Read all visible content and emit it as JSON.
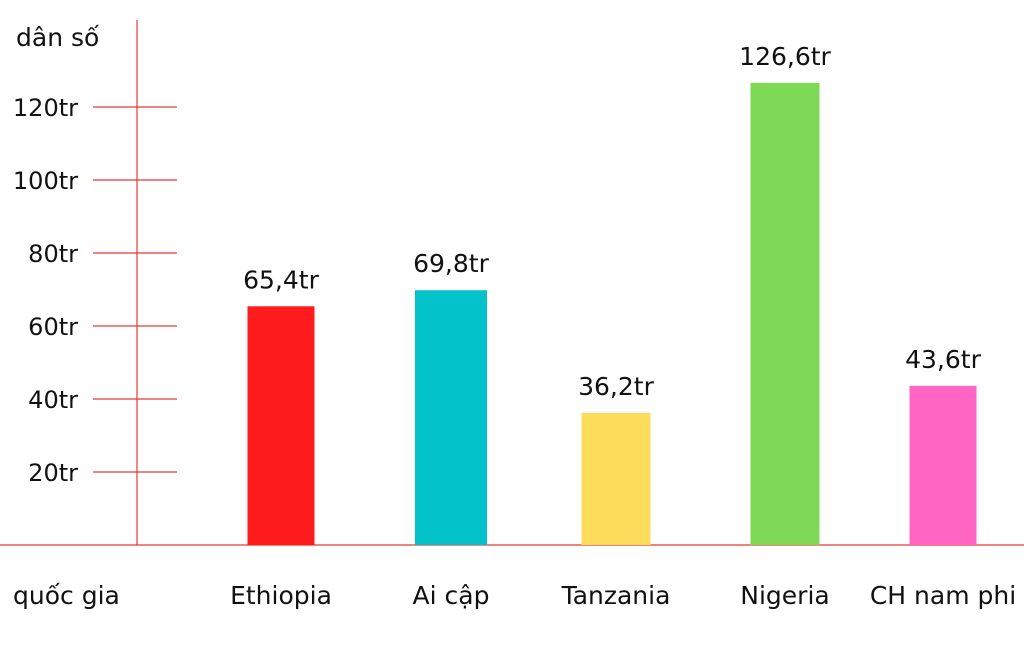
{
  "chart_data": {
    "type": "bar",
    "ylabel": "dân số",
    "xlabel": "quốc gia",
    "categories": [
      "Ethiopia",
      "Ai cập",
      "Tanzania",
      "Nigeria",
      "CH nam phi"
    ],
    "values": [
      65.4,
      69.8,
      36.2,
      126.6,
      43.6
    ],
    "value_labels": [
      "65,4tr",
      "69,8tr",
      "36,2tr",
      "126,6tr",
      "43,6tr"
    ],
    "colors": [
      "#fd1b1b",
      "#04c2c9",
      "#fcdc5a",
      "#7ed956",
      "#ff66c4"
    ],
    "y_ticks": [
      {
        "value": 20,
        "label": "20tr"
      },
      {
        "value": 40,
        "label": "40tr"
      },
      {
        "value": 60,
        "label": "60tr"
      },
      {
        "value": 80,
        "label": "80tr"
      },
      {
        "value": 100,
        "label": "100tr"
      },
      {
        "value": 120,
        "label": "120tr"
      }
    ],
    "ylim": [
      0,
      130
    ],
    "axis_color": "#e53935",
    "grid": false,
    "legend": "none"
  }
}
